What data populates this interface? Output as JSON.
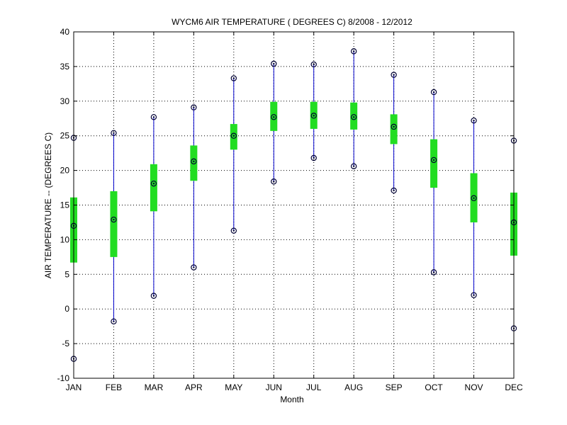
{
  "chart_data": {
    "type": "box",
    "title": "WYCM6  AIR TEMPERATURE ( DEGREES C) 8/2008 - 12/2012",
    "xlabel": "Month",
    "ylabel": "AIR TEMPERATURE -- (DEGREES C)",
    "ylim": [
      -10,
      40
    ],
    "yticks": [
      -10,
      -5,
      0,
      5,
      10,
      15,
      20,
      25,
      30,
      35,
      40
    ],
    "grid": true,
    "categories": [
      "JAN",
      "FEB",
      "MAR",
      "APR",
      "MAY",
      "JUN",
      "JUL",
      "AUG",
      "SEP",
      "OCT",
      "NOV",
      "DEC"
    ],
    "min": [
      -7.2,
      -1.8,
      1.9,
      6.0,
      11.3,
      18.4,
      21.8,
      20.6,
      17.1,
      5.3,
      2.0,
      -2.8
    ],
    "q1": [
      6.7,
      7.5,
      14.1,
      18.5,
      23.0,
      25.7,
      26.0,
      25.9,
      23.8,
      17.5,
      12.5,
      7.7
    ],
    "median": [
      12.0,
      12.9,
      18.1,
      21.3,
      25.0,
      27.7,
      27.9,
      27.7,
      26.3,
      21.5,
      16.0,
      12.5
    ],
    "q3": [
      16.1,
      17.0,
      20.9,
      23.6,
      26.7,
      29.9,
      29.9,
      29.8,
      28.1,
      24.5,
      19.6,
      16.8
    ],
    "max": [
      24.7,
      25.4,
      27.7,
      29.1,
      33.3,
      35.4,
      35.3,
      37.2,
      33.8,
      31.3,
      27.2,
      24.3
    ],
    "colors": {
      "whisker": "#0000cc",
      "box": "#22dd22",
      "marker": "#000033",
      "grid": "#000000"
    }
  }
}
